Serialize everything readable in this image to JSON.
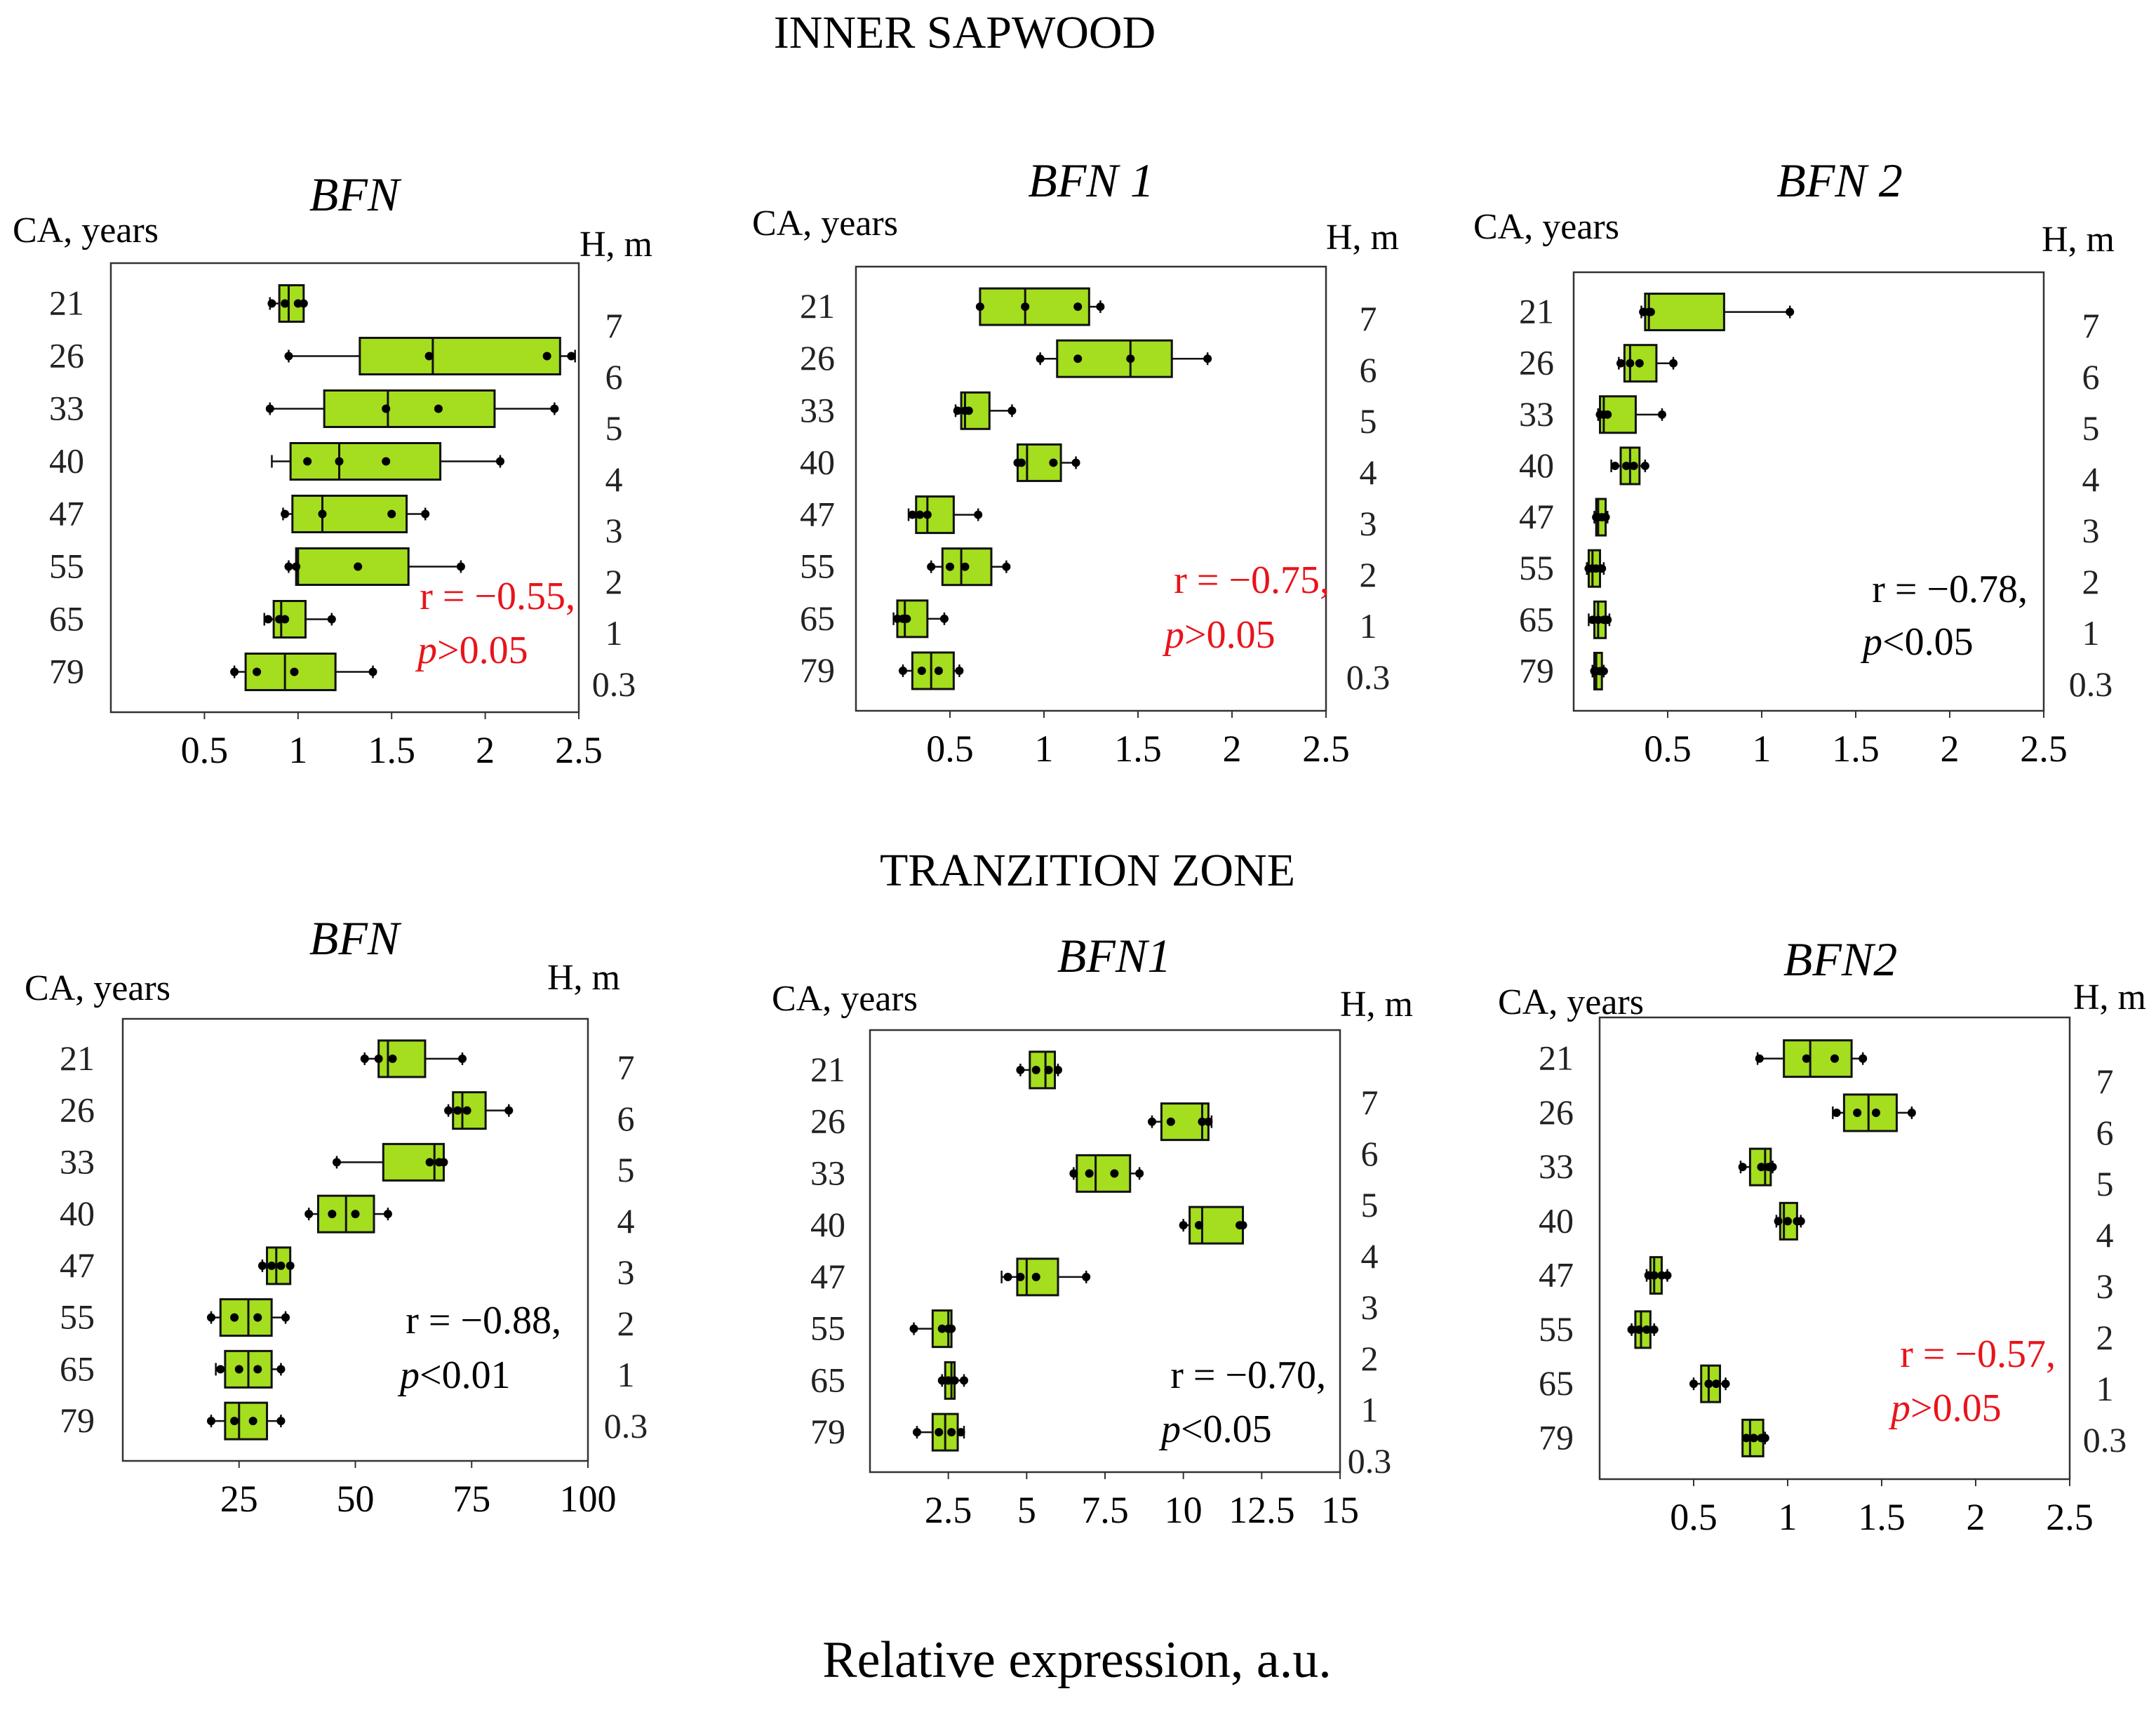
{
  "sections": {
    "top": "INNER SAPWOOD",
    "bottom": "TRANZITION ZONE"
  },
  "xlabel": "Relative expression, a.u.",
  "left_axis_label": "CA, years",
  "right_axis_label": "H, m",
  "colors": {
    "box_fill": "#a4de1e",
    "box_stroke": "#111111",
    "significant": "#000000",
    "nonsignificant": "#e8141b"
  },
  "chart_data": [
    {
      "type": "boxplot",
      "section": "INNER SAPWOOD",
      "title": "BFN",
      "categories": [
        "21",
        "26",
        "33",
        "40",
        "47",
        "55",
        "65",
        "79"
      ],
      "heights": [
        "7",
        "6",
        "5",
        "4",
        "3",
        "2",
        "1",
        "0.3"
      ],
      "xlim": [
        0,
        2.5
      ],
      "xticks": [
        0.5,
        1,
        1.5,
        2,
        2.5
      ],
      "boxes": [
        {
          "min": 0.85,
          "q1": 0.9,
          "median": 0.95,
          "q3": 1.03,
          "max": 1.03,
          "points": [
            0.86,
            0.93,
            1.0,
            1.03
          ]
        },
        {
          "min": 0.95,
          "q1": 1.33,
          "median": 1.72,
          "q3": 2.4,
          "max": 2.48,
          "points": [
            0.95,
            1.7,
            2.33,
            2.46
          ]
        },
        {
          "min": 0.85,
          "q1": 1.14,
          "median": 1.48,
          "q3": 2.05,
          "max": 2.37,
          "points": [
            0.85,
            1.47,
            1.75,
            2.37
          ]
        },
        {
          "min": 0.86,
          "q1": 0.96,
          "median": 1.22,
          "q3": 1.76,
          "max": 2.08,
          "points": [
            1.05,
            1.22,
            1.47,
            2.08
          ]
        },
        {
          "min": 0.92,
          "q1": 0.97,
          "median": 1.13,
          "q3": 1.58,
          "max": 1.68,
          "points": [
            0.93,
            1.13,
            1.5,
            1.68
          ]
        },
        {
          "min": 0.95,
          "q1": 0.99,
          "median": 1.0,
          "q3": 1.59,
          "max": 1.87,
          "points": [
            0.95,
            0.99,
            1.32,
            1.87
          ]
        },
        {
          "min": 0.82,
          "q1": 0.87,
          "median": 0.91,
          "q3": 1.04,
          "max": 1.18,
          "points": [
            0.84,
            0.9,
            0.93,
            1.18
          ]
        },
        {
          "min": 0.66,
          "q1": 0.72,
          "median": 0.93,
          "q3": 1.2,
          "max": 1.4,
          "points": [
            0.66,
            0.78,
            0.98,
            1.4
          ]
        }
      ],
      "stat": {
        "r": "r = −0.55,",
        "p": "p",
        "p_rest": ">0.05",
        "significant": false
      }
    },
    {
      "type": "boxplot",
      "section": "INNER SAPWOOD",
      "title": "BFN 1",
      "categories": [
        "21",
        "26",
        "33",
        "40",
        "47",
        "55",
        "65",
        "79"
      ],
      "heights": [
        "7",
        "6",
        "5",
        "4",
        "3",
        "2",
        "1",
        "0.3"
      ],
      "xlim": [
        0,
        2.5
      ],
      "xticks": [
        0.5,
        1,
        1.5,
        2,
        2.5
      ],
      "boxes": [
        {
          "min": 0.66,
          "q1": 0.66,
          "median": 0.9,
          "q3": 1.24,
          "max": 1.3,
          "points": [
            0.66,
            0.9,
            1.18,
            1.3
          ]
        },
        {
          "min": 0.98,
          "q1": 1.07,
          "median": 1.46,
          "q3": 1.68,
          "max": 1.87,
          "points": [
            0.98,
            1.18,
            1.46,
            1.87
          ]
        },
        {
          "min": 0.53,
          "q1": 0.56,
          "median": 0.58,
          "q3": 0.71,
          "max": 0.83,
          "points": [
            0.54,
            0.58,
            0.6,
            0.83
          ]
        },
        {
          "min": 0.86,
          "q1": 0.86,
          "median": 0.91,
          "q3": 1.09,
          "max": 1.17,
          "points": [
            0.86,
            0.88,
            1.05,
            1.17
          ]
        },
        {
          "min": 0.28,
          "q1": 0.32,
          "median": 0.38,
          "q3": 0.52,
          "max": 0.65,
          "points": [
            0.3,
            0.34,
            0.38,
            0.65
          ]
        },
        {
          "min": 0.4,
          "q1": 0.46,
          "median": 0.56,
          "q3": 0.72,
          "max": 0.8,
          "points": [
            0.4,
            0.5,
            0.58,
            0.8
          ]
        },
        {
          "min": 0.2,
          "q1": 0.22,
          "median": 0.26,
          "q3": 0.38,
          "max": 0.47,
          "points": [
            0.22,
            0.25,
            0.27,
            0.47
          ]
        },
        {
          "min": 0.25,
          "q1": 0.3,
          "median": 0.4,
          "q3": 0.52,
          "max": 0.55,
          "points": [
            0.25,
            0.35,
            0.44,
            0.55
          ]
        }
      ],
      "stat": {
        "r": "r = −0.75,",
        "p": "p",
        "p_rest": ">0.05",
        "significant": false
      }
    },
    {
      "type": "boxplot",
      "section": "INNER SAPWOOD",
      "title": "BFN 2",
      "categories": [
        "21",
        "26",
        "33",
        "40",
        "47",
        "55",
        "65",
        "79"
      ],
      "heights": [
        "7",
        "6",
        "5",
        "4",
        "3",
        "2",
        "1",
        "0.3"
      ],
      "xlim": [
        0,
        2.5
      ],
      "xticks": [
        0.5,
        1,
        1.5,
        2,
        2.5
      ],
      "boxes": [
        {
          "min": 0.36,
          "q1": 0.38,
          "median": 0.4,
          "q3": 0.8,
          "max": 1.15,
          "points": [
            0.37,
            0.4,
            0.41,
            1.15
          ]
        },
        {
          "min": 0.24,
          "q1": 0.27,
          "median": 0.3,
          "q3": 0.44,
          "max": 0.53,
          "points": [
            0.25,
            0.3,
            0.35,
            0.53
          ]
        },
        {
          "min": 0.13,
          "q1": 0.14,
          "median": 0.16,
          "q3": 0.33,
          "max": 0.47,
          "points": [
            0.14,
            0.16,
            0.18,
            0.47
          ]
        },
        {
          "min": 0.2,
          "q1": 0.25,
          "median": 0.3,
          "q3": 0.35,
          "max": 0.38,
          "points": [
            0.22,
            0.28,
            0.32,
            0.38
          ]
        },
        {
          "min": 0.11,
          "q1": 0.12,
          "median": 0.13,
          "q3": 0.17,
          "max": 0.18,
          "points": [
            0.12,
            0.13,
            0.15,
            0.17
          ]
        },
        {
          "min": 0.07,
          "q1": 0.08,
          "median": 0.1,
          "q3": 0.14,
          "max": 0.16,
          "points": [
            0.08,
            0.1,
            0.12,
            0.15
          ]
        },
        {
          "min": 0.08,
          "q1": 0.11,
          "median": 0.13,
          "q3": 0.17,
          "max": 0.19,
          "points": [
            0.1,
            0.13,
            0.16,
            0.18
          ]
        },
        {
          "min": 0.1,
          "q1": 0.11,
          "median": 0.12,
          "q3": 0.15,
          "max": 0.16,
          "points": [
            0.11,
            0.12,
            0.14,
            0.16
          ]
        }
      ],
      "stat": {
        "r": "r = −0.78,",
        "p": "p",
        "p_rest": "<0.05",
        "significant": true
      }
    },
    {
      "type": "boxplot",
      "section": "TRANZITION ZONE",
      "title": "BFN",
      "categories": [
        "21",
        "26",
        "33",
        "40",
        "47",
        "55",
        "65",
        "79"
      ],
      "heights": [
        "7",
        "6",
        "5",
        "4",
        "3",
        "2",
        "1",
        "0.3"
      ],
      "xlim": [
        0,
        100
      ],
      "xticks": [
        25,
        50,
        75,
        100
      ],
      "boxes": [
        {
          "min": 52,
          "q1": 55,
          "median": 57,
          "q3": 65,
          "max": 73,
          "points": [
            52,
            55,
            58,
            73
          ]
        },
        {
          "min": 70,
          "q1": 71,
          "median": 73,
          "q3": 78,
          "max": 83,
          "points": [
            70,
            72,
            74,
            83
          ]
        },
        {
          "min": 46,
          "q1": 56,
          "median": 67,
          "q3": 69,
          "max": 69,
          "points": [
            46,
            66,
            68,
            69
          ]
        },
        {
          "min": 40,
          "q1": 42,
          "median": 48,
          "q3": 54,
          "max": 57,
          "points": [
            40,
            45,
            50,
            57
          ]
        },
        {
          "min": 30,
          "q1": 31,
          "median": 33,
          "q3": 36,
          "max": 36,
          "points": [
            30,
            32,
            34,
            36
          ]
        },
        {
          "min": 19,
          "q1": 21,
          "median": 27,
          "q3": 32,
          "max": 35,
          "points": [
            19,
            24,
            29,
            35
          ]
        },
        {
          "min": 20,
          "q1": 22,
          "median": 27,
          "q3": 32,
          "max": 34,
          "points": [
            21,
            25,
            29,
            34
          ]
        },
        {
          "min": 19,
          "q1": 22,
          "median": 25,
          "q3": 31,
          "max": 34,
          "points": [
            19,
            24,
            28,
            34
          ]
        }
      ],
      "stat": {
        "r": "r = −0.88,",
        "p": "p",
        "p_rest": "<0.01",
        "significant": true
      }
    },
    {
      "type": "boxplot",
      "section": "TRANZITION ZONE",
      "title": "BFN1",
      "categories": [
        "21",
        "26",
        "33",
        "40",
        "47",
        "55",
        "65",
        "79"
      ],
      "heights": [
        "7",
        "6",
        "5",
        "4",
        "3",
        "2",
        "1",
        "0.3"
      ],
      "xlim": [
        0,
        15
      ],
      "xticks": [
        2.5,
        5,
        7.5,
        10,
        12.5,
        15
      ],
      "boxes": [
        {
          "min": 4.8,
          "q1": 5.1,
          "median": 5.6,
          "q3": 5.9,
          "max": 6.0,
          "points": [
            4.8,
            5.3,
            5.7,
            6.0
          ]
        },
        {
          "min": 9.0,
          "q1": 9.3,
          "median": 10.6,
          "q3": 10.8,
          "max": 10.9,
          "points": [
            9.0,
            9.6,
            10.6,
            10.8
          ]
        },
        {
          "min": 6.5,
          "q1": 6.6,
          "median": 7.2,
          "q3": 8.3,
          "max": 8.6,
          "points": [
            6.5,
            7.0,
            7.8,
            8.6
          ]
        },
        {
          "min": 10.0,
          "q1": 10.2,
          "median": 10.6,
          "q3": 11.9,
          "max": 11.9,
          "points": [
            10.0,
            10.5,
            11.8,
            11.9
          ]
        },
        {
          "min": 4.2,
          "q1": 4.7,
          "median": 5.0,
          "q3": 6.0,
          "max": 6.9,
          "points": [
            4.4,
            4.8,
            5.3,
            6.9
          ]
        },
        {
          "min": 1.4,
          "q1": 2.0,
          "median": 2.5,
          "q3": 2.6,
          "max": 2.6,
          "points": [
            1.4,
            2.3,
            2.5,
            2.6
          ]
        },
        {
          "min": 2.3,
          "q1": 2.4,
          "median": 2.6,
          "q3": 2.7,
          "max": 3.0,
          "points": [
            2.3,
            2.5,
            2.7,
            3.0
          ]
        },
        {
          "min": 1.5,
          "q1": 2.0,
          "median": 2.4,
          "q3": 2.8,
          "max": 3.0,
          "points": [
            1.5,
            2.2,
            2.6,
            2.9
          ]
        }
      ],
      "stat": {
        "r": "r = −0.70,",
        "p": "p",
        "p_rest": "<0.05",
        "significant": true
      }
    },
    {
      "type": "boxplot",
      "section": "TRANZITION ZONE",
      "title": "BFN2",
      "categories": [
        "21",
        "26",
        "33",
        "40",
        "47",
        "55",
        "65",
        "79"
      ],
      "heights": [
        "7",
        "6",
        "5",
        "4",
        "3",
        "2",
        "1",
        "0.3"
      ],
      "xlim": [
        0,
        2.5
      ],
      "xticks": [
        0.5,
        1,
        1.5,
        2,
        2.5
      ],
      "boxes": [
        {
          "min": 0.84,
          "q1": 0.98,
          "median": 1.12,
          "q3": 1.34,
          "max": 1.4,
          "points": [
            0.85,
            1.1,
            1.25,
            1.4
          ]
        },
        {
          "min": 1.24,
          "q1": 1.3,
          "median": 1.43,
          "q3": 1.58,
          "max": 1.66,
          "points": [
            1.26,
            1.37,
            1.47,
            1.66
          ]
        },
        {
          "min": 0.75,
          "q1": 0.8,
          "median": 0.88,
          "q3": 0.91,
          "max": 0.92,
          "points": [
            0.76,
            0.86,
            0.9,
            0.92
          ]
        },
        {
          "min": 0.94,
          "q1": 0.96,
          "median": 0.98,
          "q3": 1.05,
          "max": 1.07,
          "points": [
            0.95,
            1.0,
            1.05,
            1.07
          ]
        },
        {
          "min": 0.25,
          "q1": 0.27,
          "median": 0.29,
          "q3": 0.33,
          "max": 0.36,
          "points": [
            0.26,
            0.29,
            0.33,
            0.36
          ]
        },
        {
          "min": 0.17,
          "q1": 0.19,
          "median": 0.22,
          "q3": 0.27,
          "max": 0.29,
          "points": [
            0.17,
            0.21,
            0.25,
            0.29
          ]
        },
        {
          "min": 0.5,
          "q1": 0.54,
          "median": 0.58,
          "q3": 0.64,
          "max": 0.67,
          "points": [
            0.5,
            0.58,
            0.62,
            0.67
          ]
        },
        {
          "min": 0.76,
          "q1": 0.76,
          "median": 0.8,
          "q3": 0.87,
          "max": 0.88,
          "points": [
            0.78,
            0.82,
            0.86,
            0.88
          ]
        }
      ],
      "stat": {
        "r": "r = −0.57,",
        "p": "p",
        "p_rest": ">0.05",
        "significant": false
      }
    }
  ]
}
